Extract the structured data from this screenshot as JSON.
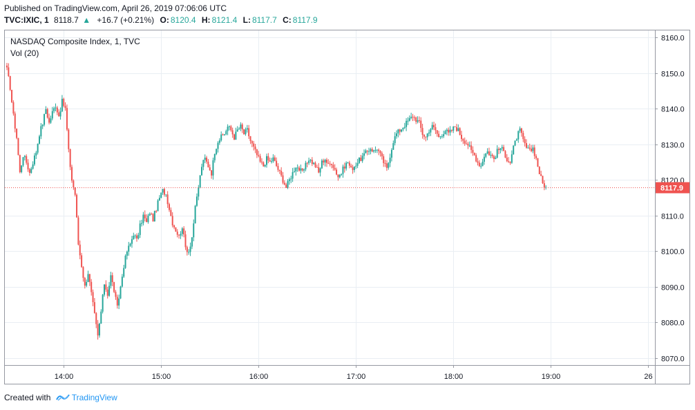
{
  "header": {
    "published": "Published on TradingView.com, April 26, 2019 07:06:06 UTC",
    "symbol": "TVC:IXIC, 1",
    "last": "8118.7",
    "change": "+16.7 (+0.21%)",
    "open_label": "O:",
    "open": "8120.4",
    "high_label": "H:",
    "high": "8121.4",
    "low_label": "L:",
    "low": "8117.7",
    "close_label": "C:",
    "close": "8117.9"
  },
  "legend": {
    "title": "NASDAQ Composite Index, 1, TVC",
    "indicator": "Vol (20)"
  },
  "footer": {
    "created_with": "Created with",
    "brand": "TradingView"
  },
  "colors": {
    "up": "#26a69a",
    "down": "#ef5350",
    "grid": "#e9eef3",
    "border": "#9598a1",
    "price_line": "#ef5350",
    "brand": "#2196f3"
  },
  "chart_data": {
    "type": "candlestick",
    "title": "NASDAQ Composite Index, 1, TVC",
    "ylim": [
      8068,
      8162
    ],
    "y_ticks": [
      8070,
      8080,
      8090,
      8100,
      8110,
      8120,
      8130,
      8140,
      8150,
      8160
    ],
    "y_tick_labels": [
      "8070.0",
      "8080.0",
      "8090.0",
      "8100.0",
      "8110.0",
      "8120.0",
      "8130.0",
      "8140.0",
      "8150.0",
      "8160.0"
    ],
    "x_range_minutes": [
      805,
      1195
    ],
    "x_ticks": [
      840,
      900,
      960,
      1020,
      1080,
      1140,
      1200
    ],
    "x_tick_labels": [
      "14:00",
      "15:00",
      "16:00",
      "17:00",
      "18:00",
      "19:00",
      "26"
    ],
    "last_price": 8117.9,
    "last_price_label": "8117.9",
    "close_path": [
      [
        805,
        8151
      ],
      [
        807,
        8146
      ],
      [
        809,
        8138
      ],
      [
        811,
        8132
      ],
      [
        813,
        8122
      ],
      [
        815,
        8127
      ],
      [
        817,
        8125
      ],
      [
        819,
        8122
      ],
      [
        821,
        8125
      ],
      [
        823,
        8128
      ],
      [
        825,
        8133
      ],
      [
        827,
        8136
      ],
      [
        829,
        8140
      ],
      [
        831,
        8136
      ],
      [
        833,
        8139
      ],
      [
        835,
        8141
      ],
      [
        837,
        8138
      ],
      [
        839,
        8142
      ],
      [
        841,
        8140
      ],
      [
        843,
        8128
      ],
      [
        845,
        8120
      ],
      [
        847,
        8116
      ],
      [
        849,
        8102
      ],
      [
        851,
        8096
      ],
      [
        853,
        8090
      ],
      [
        855,
        8094
      ],
      [
        857,
        8088
      ],
      [
        859,
        8082
      ],
      [
        861,
        8076
      ],
      [
        863,
        8083
      ],
      [
        865,
        8091
      ],
      [
        867,
        8088
      ],
      [
        869,
        8093
      ],
      [
        871,
        8089
      ],
      [
        873,
        8084
      ],
      [
        875,
        8090
      ],
      [
        877,
        8096
      ],
      [
        879,
        8100
      ],
      [
        881,
        8102
      ],
      [
        883,
        8105
      ],
      [
        885,
        8103
      ],
      [
        887,
        8107
      ],
      [
        889,
        8110
      ],
      [
        891,
        8108
      ],
      [
        893,
        8111
      ],
      [
        895,
        8109
      ],
      [
        897,
        8112
      ],
      [
        899,
        8115
      ],
      [
        901,
        8117
      ],
      [
        903,
        8116
      ],
      [
        905,
        8112
      ],
      [
        907,
        8108
      ],
      [
        909,
        8106
      ],
      [
        911,
        8104
      ],
      [
        913,
        8107
      ],
      [
        915,
        8101
      ],
      [
        917,
        8100
      ],
      [
        919,
        8104
      ],
      [
        921,
        8112
      ],
      [
        923,
        8118
      ],
      [
        925,
        8124
      ],
      [
        927,
        8126
      ],
      [
        929,
        8124
      ],
      [
        931,
        8122
      ],
      [
        933,
        8128
      ],
      [
        935,
        8131
      ],
      [
        937,
        8132
      ],
      [
        939,
        8133
      ],
      [
        941,
        8135
      ],
      [
        943,
        8134
      ],
      [
        945,
        8132
      ],
      [
        947,
        8134
      ],
      [
        949,
        8135
      ],
      [
        951,
        8133
      ],
      [
        953,
        8134
      ],
      [
        955,
        8131
      ],
      [
        957,
        8129
      ],
      [
        959,
        8127
      ],
      [
        961,
        8125
      ],
      [
        963,
        8124
      ],
      [
        965,
        8126
      ],
      [
        967,
        8125
      ],
      [
        969,
        8126
      ],
      [
        971,
        8124
      ],
      [
        973,
        8122
      ],
      [
        975,
        8120
      ],
      [
        977,
        8118
      ],
      [
        979,
        8120
      ],
      [
        981,
        8122
      ],
      [
        983,
        8124
      ],
      [
        985,
        8123
      ],
      [
        987,
        8122
      ],
      [
        989,
        8124
      ],
      [
        991,
        8126
      ],
      [
        993,
        8125
      ],
      [
        995,
        8124
      ],
      [
        997,
        8122
      ],
      [
        999,
        8125
      ],
      [
        1001,
        8126
      ],
      [
        1003,
        8124
      ],
      [
        1005,
        8125
      ],
      [
        1007,
        8123
      ],
      [
        1009,
        8121
      ],
      [
        1011,
        8122
      ],
      [
        1013,
        8124
      ],
      [
        1015,
        8125
      ],
      [
        1017,
        8123
      ],
      [
        1019,
        8124
      ],
      [
        1021,
        8125
      ],
      [
        1023,
        8126
      ],
      [
        1025,
        8127
      ],
      [
        1027,
        8128
      ],
      [
        1029,
        8129
      ],
      [
        1031,
        8128
      ],
      [
        1033,
        8129
      ],
      [
        1035,
        8127
      ],
      [
        1037,
        8125
      ],
      [
        1039,
        8123
      ],
      [
        1041,
        8127
      ],
      [
        1043,
        8131
      ],
      [
        1045,
        8133
      ],
      [
        1047,
        8134
      ],
      [
        1049,
        8135
      ],
      [
        1051,
        8136
      ],
      [
        1053,
        8137
      ],
      [
        1055,
        8138
      ],
      [
        1057,
        8137
      ],
      [
        1059,
        8136
      ],
      [
        1061,
        8133
      ],
      [
        1063,
        8132
      ],
      [
        1065,
        8134
      ],
      [
        1067,
        8135
      ],
      [
        1069,
        8134
      ],
      [
        1071,
        8132
      ],
      [
        1073,
        8133
      ],
      [
        1075,
        8134
      ],
      [
        1077,
        8133
      ],
      [
        1079,
        8134
      ],
      [
        1081,
        8135
      ],
      [
        1083,
        8134
      ],
      [
        1085,
        8132
      ],
      [
        1087,
        8131
      ],
      [
        1089,
        8130
      ],
      [
        1091,
        8128
      ],
      [
        1093,
        8127
      ],
      [
        1095,
        8125
      ],
      [
        1097,
        8124
      ],
      [
        1099,
        8127
      ],
      [
        1101,
        8128
      ],
      [
        1103,
        8127
      ],
      [
        1105,
        8126
      ],
      [
        1107,
        8128
      ],
      [
        1109,
        8129
      ],
      [
        1111,
        8128
      ],
      [
        1113,
        8126
      ],
      [
        1115,
        8125
      ],
      [
        1117,
        8129
      ],
      [
        1119,
        8132
      ],
      [
        1121,
        8134
      ],
      [
        1123,
        8131
      ],
      [
        1125,
        8129
      ],
      [
        1127,
        8128
      ],
      [
        1129,
        8129
      ],
      [
        1131,
        8126
      ],
      [
        1133,
        8122
      ],
      [
        1135,
        8119
      ],
      [
        1137,
        8118
      ]
    ]
  }
}
